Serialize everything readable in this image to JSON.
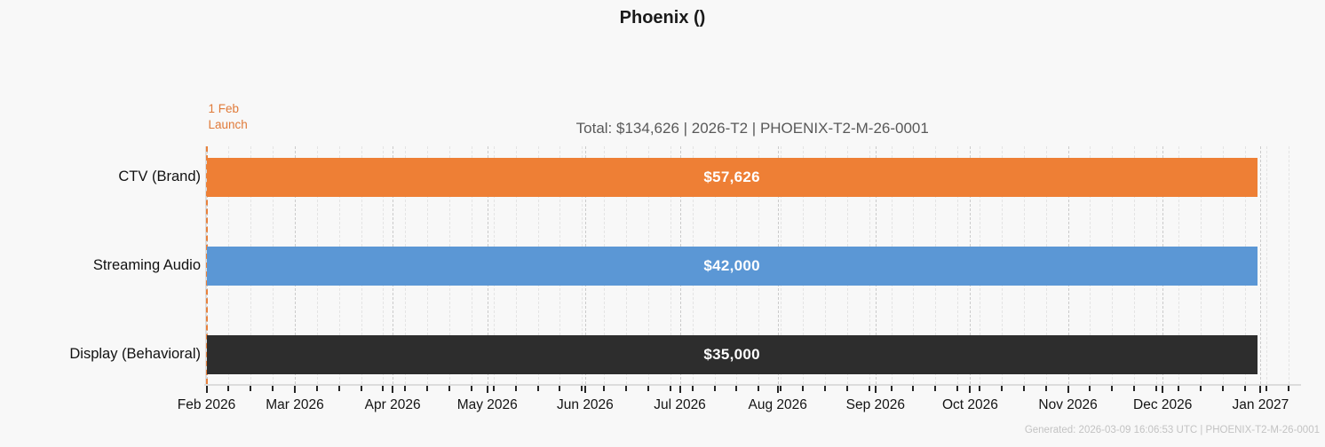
{
  "title": "Phoenix ()",
  "subtitle": "Total: $134,626  |  2026-T2  |  PHOENIX-T2-M-26-0001",
  "annotation": {
    "lines": [
      "1 Feb",
      "Launch"
    ],
    "color": "#e07a39"
  },
  "footer": "Generated: 2026-03-09 16:06:53 UTC  |  PHOENIX-T2-M-26-0001",
  "chart_data": {
    "type": "bar",
    "orientation": "horizontal",
    "title": "Phoenix ()",
    "subtitle": "Total: $134,626  |  2026-T2  |  PHOENIX-T2-M-26-0001",
    "categories": [
      "CTV (Brand)",
      "Streaming Audio",
      "Display (Behavioral)"
    ],
    "values": [
      57626,
      42000,
      35000
    ],
    "value_labels": [
      "$57,626",
      "$42,000",
      "$35,000"
    ],
    "bar_colors": [
      "#ee7f35",
      "#5b97d5",
      "#2d2d2d"
    ],
    "total": 134626,
    "x_axis": {
      "type": "time",
      "range_start": "2026-02-01",
      "range_end": "2027-01-13",
      "tick_labels": [
        "Feb 2026",
        "Mar 2026",
        "Apr 2026",
        "May 2026",
        "Jun 2026",
        "Jul 2026",
        "Aug 2026",
        "Sep 2026",
        "Oct 2026",
        "Nov 2026",
        "Dec 2026",
        "Jan 2027"
      ],
      "tick_dates": [
        "2026-02-01",
        "2026-03-01",
        "2026-04-01",
        "2026-05-01",
        "2026-06-01",
        "2026-07-01",
        "2026-08-01",
        "2026-09-01",
        "2026-10-01",
        "2026-11-01",
        "2026-12-01",
        "2027-01-01"
      ],
      "minor_grid": "weekly-dashed",
      "major_grid": "monthly-dashed"
    },
    "bars_start": "2026-02-01",
    "bars_end": "2026-12-31",
    "launch_line": {
      "date": "2026-02-01",
      "label": "1 Feb Launch",
      "color": "#e8813c",
      "style": "dashed"
    },
    "legend": "none"
  }
}
